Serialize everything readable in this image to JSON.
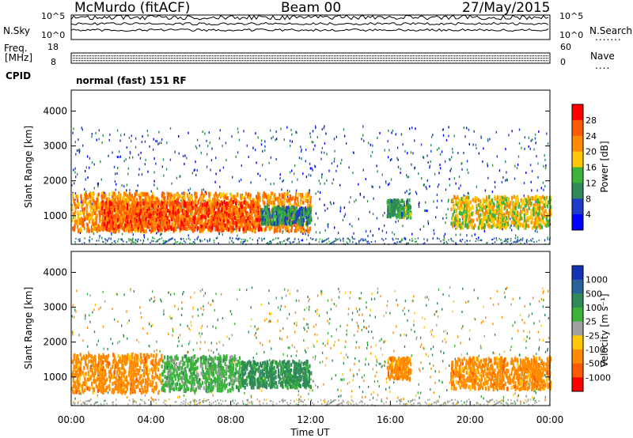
{
  "header": {
    "station": "McMurdo (fitACF)",
    "beam": "Beam 00",
    "date": "27/May/2015"
  },
  "status_panels": {
    "nsky_label": "N.Sky",
    "nsearch_label": "N.Search",
    "freq_label_1": "Freq.",
    "freq_label_2": "[MHz]",
    "nave_label": "Nave",
    "cpid_label": "CPID",
    "cpid_value": "normal (fast) 151 RF",
    "noise_ticks_left": [
      "10^5",
      "10^0"
    ],
    "noise_ticks_right": [
      "10^5",
      "10^0"
    ],
    "freq_ticks_left": [
      "18",
      "8"
    ],
    "nave_ticks_right": [
      "60",
      "0"
    ]
  },
  "chart_data": [
    {
      "type": "heatmap",
      "name": "Power",
      "ylabel": "Slant Range [km]",
      "xlabel": "",
      "xlim": [
        0,
        24
      ],
      "ylim": [
        180,
        4600
      ],
      "y_ticks": [
        1000,
        2000,
        3000,
        4000
      ],
      "colorbar": {
        "title": "Power [dB]",
        "labels": [
          "28",
          "24",
          "20",
          "16",
          "12",
          "8",
          "4"
        ],
        "colors": [
          "#ff0000",
          "#ff5a00",
          "#ff8c00",
          "#ffc800",
          "#3cb43c",
          "#2e8b57",
          "#1e3cc8",
          "#0000ff"
        ],
        "range": [
          0,
          32
        ]
      },
      "regions": [
        {
          "t0": 0.0,
          "t1": 12.0,
          "r0": 600,
          "r1": 1700,
          "level": 24
        },
        {
          "t0": 1.5,
          "t1": 9.5,
          "r0": 650,
          "r1": 1450,
          "level": 28
        },
        {
          "t0": 9.5,
          "t1": 12.0,
          "r0": 800,
          "r1": 1300,
          "level": 12
        },
        {
          "t0": 15.8,
          "t1": 17.0,
          "r0": 1000,
          "r1": 1500,
          "level": 14
        },
        {
          "t0": 19.0,
          "t1": 24.0,
          "r0": 700,
          "r1": 1600,
          "level": 20
        }
      ]
    },
    {
      "type": "heatmap",
      "name": "Velocity",
      "ylabel": "Slant Range [km]",
      "xlabel": "Time UT",
      "xlim": [
        0,
        24
      ],
      "ylim": [
        180,
        4600
      ],
      "y_ticks": [
        1000,
        2000,
        3000,
        4000
      ],
      "x_tick_labels": [
        "00:00",
        "04:00",
        "08:00",
        "12:00",
        "16:00",
        "20:00",
        "00:00"
      ],
      "colorbar": {
        "title": "Velocity [m s⁻¹]",
        "labels": [
          "1000",
          "500",
          "100",
          "25",
          "-25",
          "-100",
          "-500",
          "-1000"
        ],
        "colors": [
          "#1432b4",
          "#28649a",
          "#2e8b57",
          "#3cb43c",
          "#a0a0a0",
          "#ffc800",
          "#ff8c00",
          "#ff5a00",
          "#ff0000"
        ]
      },
      "regions": [
        {
          "t0": 0.0,
          "t1": 4.5,
          "r0": 600,
          "r1": 1700,
          "level": -300
        },
        {
          "t0": 4.5,
          "t1": 8.5,
          "r0": 650,
          "r1": 1650,
          "level": 60
        },
        {
          "t0": 8.5,
          "t1": 12.0,
          "r0": 750,
          "r1": 1500,
          "level": 200
        },
        {
          "t0": 15.8,
          "t1": 17.0,
          "r0": 1000,
          "r1": 1600,
          "level": -300
        },
        {
          "t0": 19.0,
          "t1": 24.0,
          "r0": 700,
          "r1": 1600,
          "level": -300
        }
      ]
    }
  ]
}
